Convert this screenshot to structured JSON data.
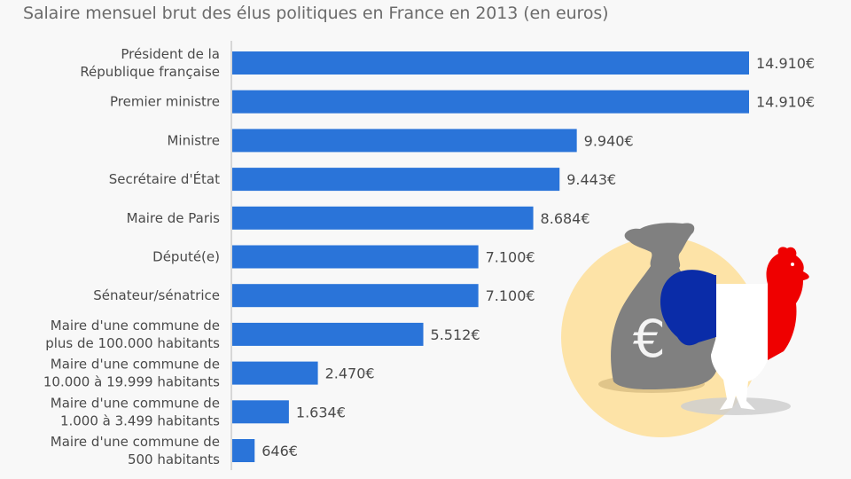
{
  "chart_data": {
    "type": "bar",
    "orientation": "horizontal",
    "title": "Salaire mensuel brut des élus politiques en France en 2013 (en euros)",
    "xlabel": "",
    "ylabel": "",
    "xlim": [
      0,
      14910
    ],
    "grid": false,
    "categories": [
      [
        "Président de la",
        "République française"
      ],
      [
        "Premier ministre"
      ],
      [
        "Ministre"
      ],
      [
        "Secrétaire d'État"
      ],
      [
        "Maire de Paris"
      ],
      [
        "Député(e)"
      ],
      [
        "Sénateur/sénatrice"
      ],
      [
        "Maire d'une commune de",
        "plus de 100.000 habitants"
      ],
      [
        "Maire d'une commune de",
        "10.000 à 19.999 habitants"
      ],
      [
        "Maire d'une commune de",
        "1.000 à 3.499 habitants"
      ],
      [
        "Maire d'une commune de",
        "500 habitants"
      ]
    ],
    "values": [
      14910,
      14910,
      9940,
      9443,
      8684,
      7100,
      7100,
      5512,
      2470,
      1634,
      646
    ],
    "value_labels": [
      "14.910€",
      "14.910€",
      "9.940€",
      "9.443€",
      "8.684€",
      "7.100€",
      "7.100€",
      "5.512€",
      "2.470€",
      "1.634€",
      "646€"
    ],
    "bar_color": "#2a74d9",
    "axis_color": "#cccccc"
  },
  "illustration": {
    "description": "money bag with euro sign and French rooster in tricolor",
    "icon": "money-bag-rooster-icon",
    "colors": {
      "circle": "#fde3a7",
      "bag": "#808080",
      "blue": "#0a2ca8",
      "white": "#ffffff",
      "red": "#ef0000"
    }
  }
}
